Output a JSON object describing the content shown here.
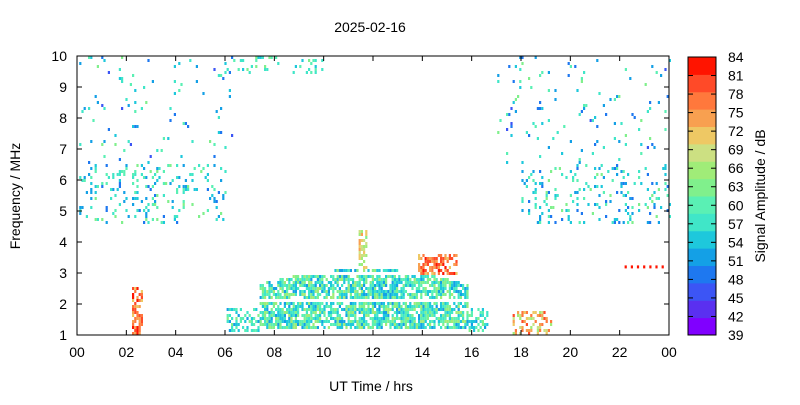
{
  "chart_data": {
    "type": "heatmap",
    "title": "2025-02-16",
    "xlabel": "UT Time / hrs",
    "ylabel": "Frequency / MHz",
    "colorbar_label": "Signal Amplitude / dB",
    "xlim": [
      0,
      24
    ],
    "ylim": [
      1,
      10
    ],
    "x_ticks": [
      "00",
      "02",
      "04",
      "06",
      "08",
      "10",
      "12",
      "14",
      "16",
      "18",
      "20",
      "22",
      "00"
    ],
    "y_ticks": [
      "1",
      "2",
      "3",
      "4",
      "5",
      "6",
      "7",
      "8",
      "9",
      "10"
    ],
    "colorbar": {
      "ticks": [
        "39",
        "42",
        "45",
        "48",
        "51",
        "54",
        "57",
        "60",
        "63",
        "66",
        "69",
        "72",
        "75",
        "78",
        "81",
        "84"
      ],
      "range": [
        39,
        84
      ],
      "colors": [
        "#8000ff",
        "#5a30f0",
        "#3c55f5",
        "#1e78f0",
        "#14a0e6",
        "#1ec8dc",
        "#40e6c8",
        "#5af0b4",
        "#80f08c",
        "#a0ec78",
        "#cce082",
        "#eec864",
        "#f8a050",
        "#ff783c",
        "#ff4a28",
        "#ff1400"
      ]
    },
    "features": [
      {
        "x_range": [
          7.4,
          15.8
        ],
        "y_range": [
          1.2,
          3.2
        ],
        "level": "57-66"
      },
      {
        "x_range": [
          13.8,
          15.4
        ],
        "y_range": [
          2.9,
          3.6
        ],
        "level": "72-84"
      },
      {
        "x_range": [
          2.2,
          2.6
        ],
        "y_range": [
          1.0,
          2.5
        ],
        "level": "75-84"
      },
      {
        "x_range": [
          17.6,
          19.2
        ],
        "y_range": [
          1.0,
          1.8
        ],
        "level": "69-81"
      },
      {
        "x_range": [
          0.0,
          6.0
        ],
        "y_range": [
          4.5,
          6.5
        ],
        "level": "51-60"
      },
      {
        "x_range": [
          18.0,
          24.0
        ],
        "y_range": [
          4.8,
          6.2
        ],
        "level": "51-60"
      }
    ]
  }
}
